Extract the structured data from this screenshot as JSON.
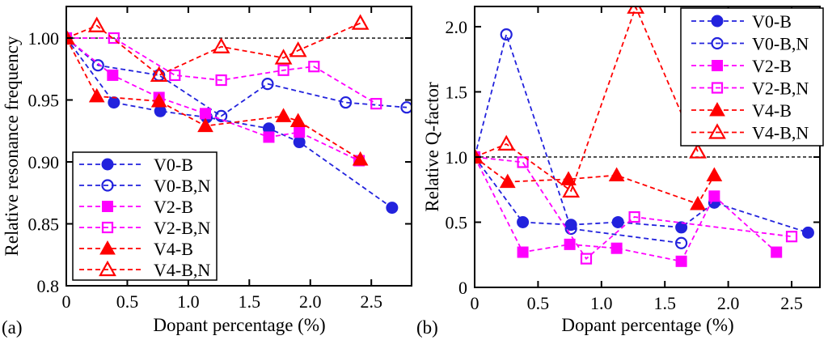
{
  "figure": {
    "panel_a_tag": "(a)",
    "panel_b_tag": "(b)"
  },
  "colors": {
    "blue": "#2222dd",
    "magenta": "#ff00ff",
    "red": "#ff0000",
    "axis": "#000000",
    "reference_line": "#000000"
  },
  "chart_data": [
    {
      "type": "line",
      "panel": "a",
      "title": "",
      "xlabel": "Dopant percentage (%)",
      "ylabel": "Relative resonance frequency",
      "xlim": [
        0,
        2.83
      ],
      "ylim": [
        0.8,
        1.0255
      ],
      "grid": false,
      "reference_line_y": 1.0,
      "legend_position": "lower-left",
      "xticks": {
        "values": [
          0,
          0.5,
          1.0,
          1.5,
          2.0,
          2.5
        ],
        "labels": [
          "0",
          "0.5",
          "1.0",
          "1.5",
          "2.0",
          "2.5"
        ]
      },
      "yticks": {
        "values": [
          1.0,
          0.95,
          0.9,
          0.85,
          0.8
        ],
        "labels": [
          "1.00",
          "0.95",
          "0.90",
          "0.85",
          "0.8"
        ]
      },
      "series": [
        {
          "name": "V0-B",
          "color": "#2222dd",
          "marker": "circle",
          "filled": true,
          "points": [
            [
              0,
              1.0
            ],
            [
              0.39,
              0.948
            ],
            [
              0.77,
              0.941
            ],
            [
              1.15,
              0.936
            ],
            [
              1.66,
              0.927
            ],
            [
              1.91,
              0.916
            ],
            [
              2.67,
              0.863
            ]
          ]
        },
        {
          "name": "V0-B,N",
          "color": "#2222dd",
          "marker": "circle",
          "filled": false,
          "points": [
            [
              0,
              1.0
            ],
            [
              0.26,
              0.978
            ],
            [
              0.76,
              0.97
            ],
            [
              1.27,
              0.937
            ],
            [
              1.65,
              0.963
            ],
            [
              2.29,
              0.948
            ],
            [
              2.79,
              0.944
            ]
          ]
        },
        {
          "name": "V2-B",
          "color": "#ff00ff",
          "marker": "square",
          "filled": true,
          "points": [
            [
              0,
              1.0
            ],
            [
              0.38,
              0.97
            ],
            [
              0.76,
              0.952
            ],
            [
              1.14,
              0.939
            ],
            [
              1.66,
              0.92
            ],
            [
              1.91,
              0.924
            ],
            [
              2.4,
              0.901
            ]
          ]
        },
        {
          "name": "V2-B,N",
          "color": "#ff00ff",
          "marker": "square",
          "filled": false,
          "points": [
            [
              0,
              1.0
            ],
            [
              0.39,
              1.0
            ],
            [
              0.89,
              0.97
            ],
            [
              1.27,
              0.966
            ],
            [
              1.78,
              0.974
            ],
            [
              2.03,
              0.977
            ],
            [
              2.54,
              0.947
            ]
          ]
        },
        {
          "name": "V4-B",
          "color": "#ff0000",
          "marker": "triangle",
          "filled": true,
          "points": [
            [
              0,
              1.0
            ],
            [
              0.25,
              0.953
            ],
            [
              0.76,
              0.949
            ],
            [
              1.14,
              0.929
            ],
            [
              1.78,
              0.937
            ],
            [
              1.9,
              0.933
            ],
            [
              2.41,
              0.902
            ]
          ]
        },
        {
          "name": "V4-B,N",
          "color": "#ff0000",
          "marker": "triangle",
          "filled": false,
          "points": [
            [
              0,
              1.0
            ],
            [
              0.25,
              1.01
            ],
            [
              0.76,
              0.97
            ],
            [
              1.27,
              0.993
            ],
            [
              1.78,
              0.984
            ],
            [
              1.9,
              0.99
            ],
            [
              2.41,
              1.012
            ]
          ]
        }
      ]
    },
    {
      "type": "line",
      "panel": "b",
      "title": "",
      "xlabel": "Dopant percentage (%)",
      "ylabel": "Relative Q-factor",
      "xlim": [
        0,
        2.723
      ],
      "ylim": [
        0,
        2.155
      ],
      "grid": false,
      "reference_line_y": 1.0,
      "legend_position": "upper-right",
      "xticks": {
        "values": [
          0,
          0.5,
          1.0,
          1.5,
          2.0,
          2.5
        ],
        "labels": [
          "0",
          "0.5",
          "1.0",
          "1.5",
          "2.0",
          "2.5"
        ]
      },
      "yticks": {
        "values": [
          2.0,
          1.5,
          1.0,
          0.5,
          0
        ],
        "labels": [
          "2.0",
          "1.5",
          "1.0",
          "0.5",
          "0"
        ]
      },
      "series": [
        {
          "name": "V0-B",
          "color": "#2222dd",
          "marker": "circle",
          "filled": true,
          "points": [
            [
              0,
              1.0
            ],
            [
              0.38,
              0.5
            ],
            [
              0.76,
              0.48
            ],
            [
              1.13,
              0.5
            ],
            [
              1.63,
              0.46
            ],
            [
              1.89,
              0.65
            ],
            [
              2.63,
              0.42
            ]
          ]
        },
        {
          "name": "V0-B,N",
          "color": "#2222dd",
          "marker": "circle",
          "filled": false,
          "points": [
            [
              0,
              1.0
            ],
            [
              0.25,
              1.94
            ],
            [
              0.76,
              0.45
            ],
            [
              1.63,
              0.34
            ]
          ]
        },
        {
          "name": "V2-B",
          "color": "#ff00ff",
          "marker": "square",
          "filled": true,
          "points": [
            [
              0,
              1.0
            ],
            [
              0.38,
              0.27
            ],
            [
              0.75,
              0.33
            ],
            [
              1.12,
              0.3
            ],
            [
              1.63,
              0.2
            ],
            [
              1.89,
              0.7
            ],
            [
              2.38,
              0.27
            ]
          ]
        },
        {
          "name": "V2-B,N",
          "color": "#ff00ff",
          "marker": "square",
          "filled": false,
          "points": [
            [
              0,
              1.0
            ],
            [
              0.38,
              0.96
            ],
            [
              0.88,
              0.22
            ],
            [
              1.26,
              0.54
            ],
            [
              2.5,
              0.39
            ]
          ]
        },
        {
          "name": "V4-B",
          "color": "#ff0000",
          "marker": "triangle",
          "filled": true,
          "points": [
            [
              0,
              1.0
            ],
            [
              0.26,
              0.81
            ],
            [
              0.74,
              0.83
            ],
            [
              1.12,
              0.86
            ],
            [
              1.76,
              0.64
            ],
            [
              1.89,
              0.86
            ]
          ]
        },
        {
          "name": "V4-B,N",
          "color": "#ff0000",
          "marker": "triangle",
          "filled": false,
          "points": [
            [
              0,
              1.0
            ],
            [
              0.25,
              1.1
            ],
            [
              0.76,
              0.74
            ],
            [
              1.27,
              2.15
            ],
            [
              1.76,
              1.04
            ]
          ]
        }
      ]
    }
  ]
}
